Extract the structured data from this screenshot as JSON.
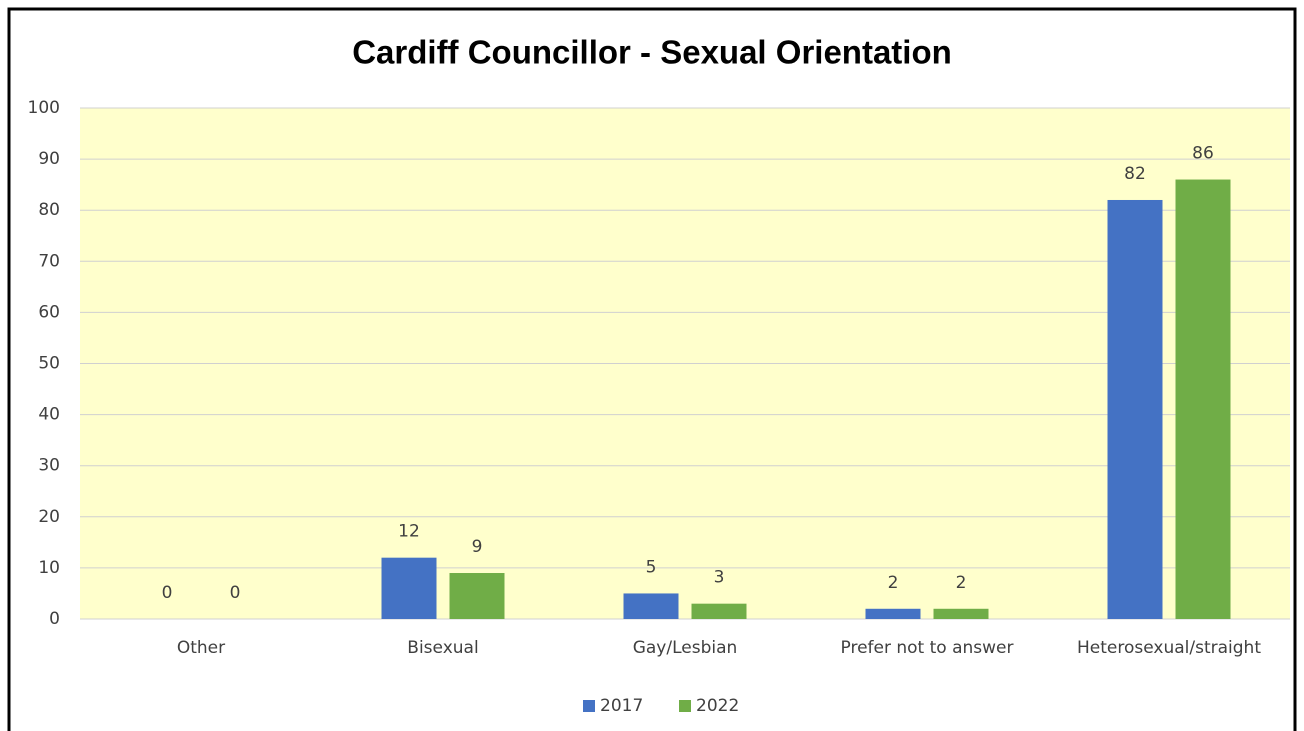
{
  "chart_data": {
    "type": "bar",
    "title": "Cardiff Councillor - Sexual Orientation",
    "categories": [
      "Other",
      "Bisexual",
      "Gay/Lesbian",
      "Prefer not to answer",
      "Heterosexual/straight"
    ],
    "series": [
      {
        "name": "2017",
        "color": "#4472c4",
        "values": [
          0,
          12,
          5,
          2,
          82
        ]
      },
      {
        "name": "2022",
        "color": "#70ad47",
        "values": [
          0,
          9,
          3,
          2,
          86
        ]
      }
    ],
    "ylim": [
      0,
      100
    ],
    "yticks": [
      0,
      10,
      20,
      30,
      40,
      50,
      60,
      70,
      80,
      90,
      100
    ],
    "grid": true,
    "legend": "bottom"
  }
}
